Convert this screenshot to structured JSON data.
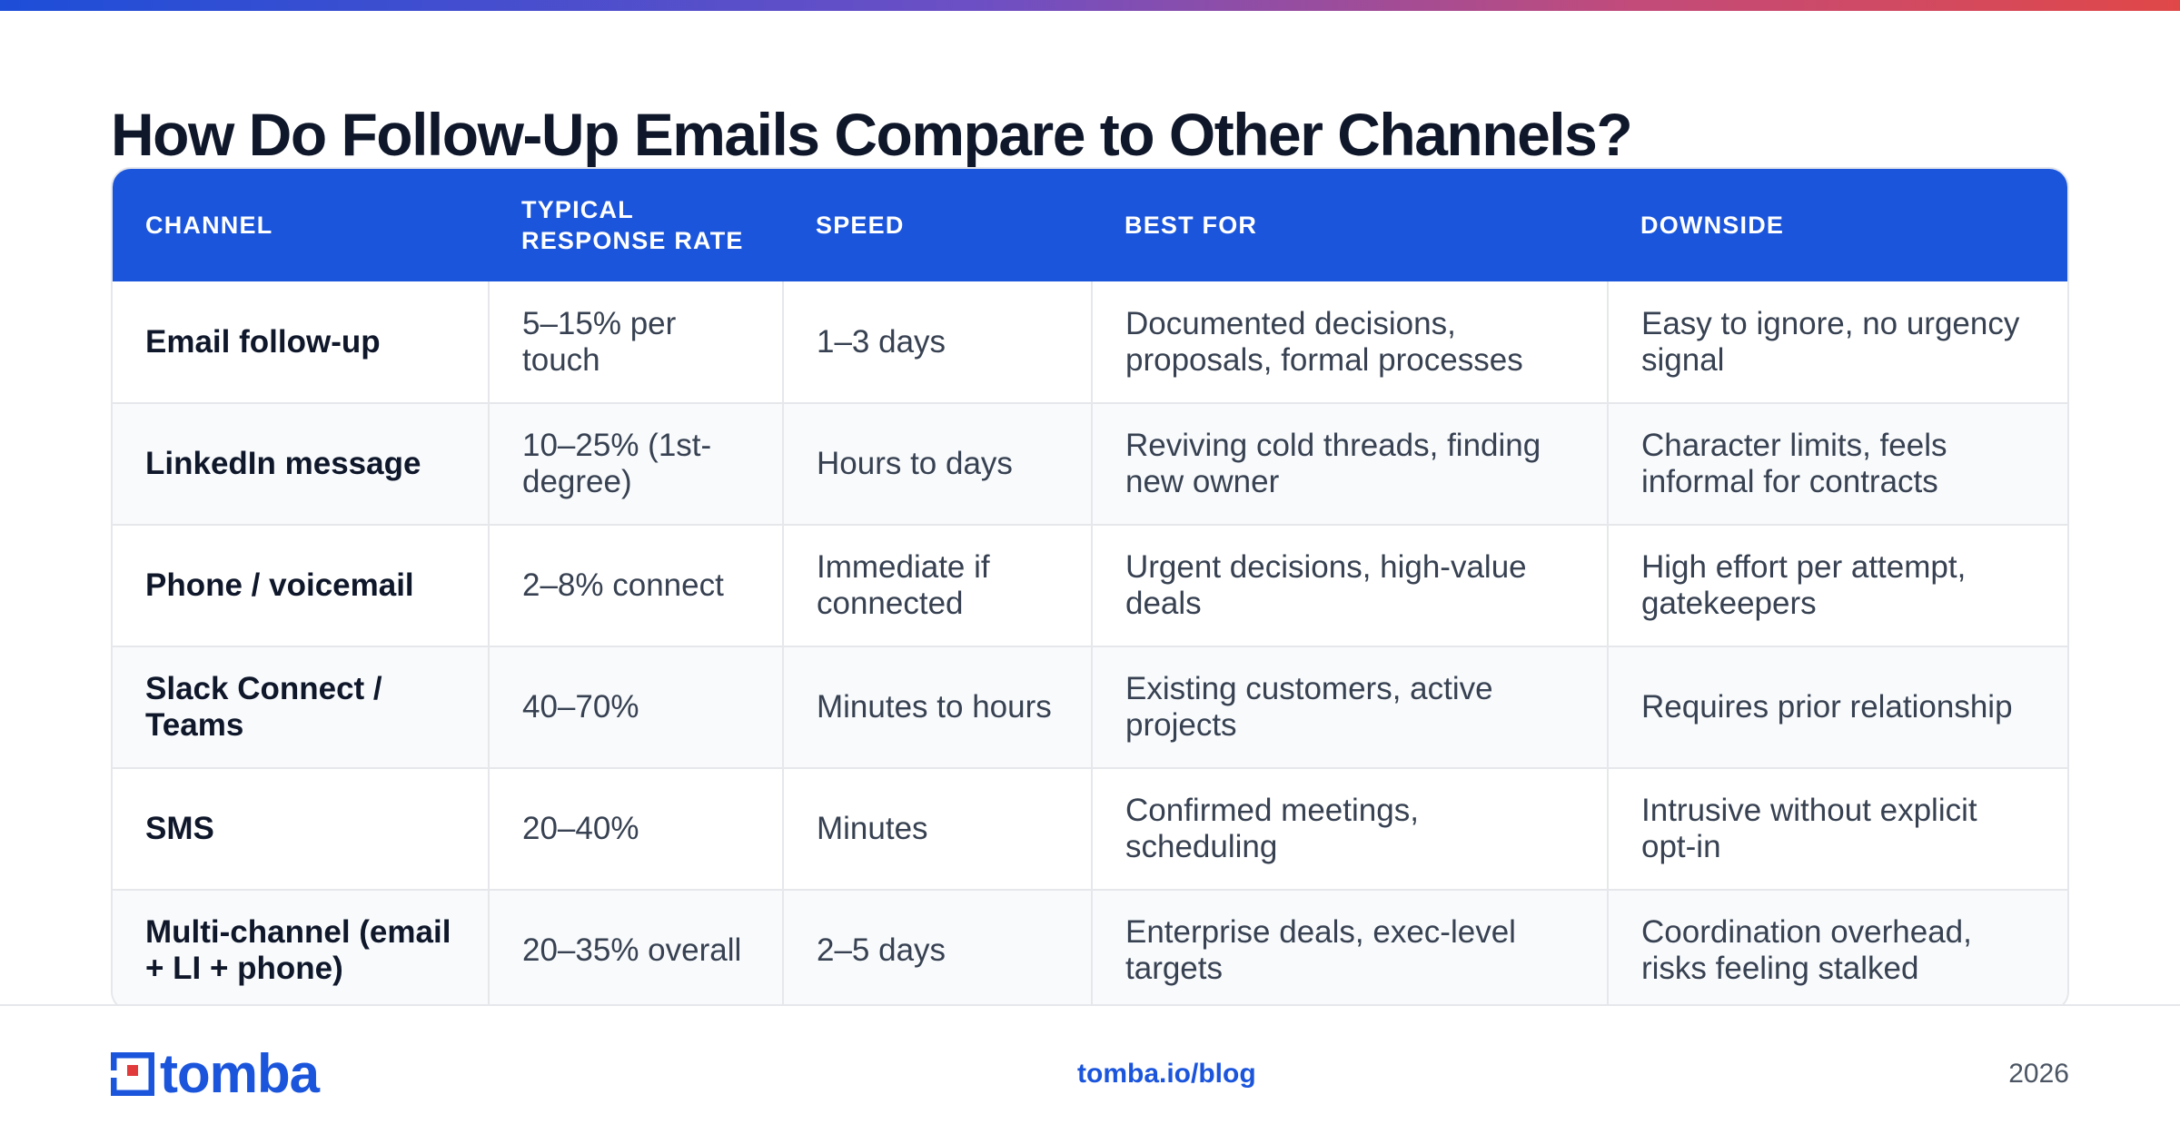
{
  "title": "How Do Follow-Up Emails Compare to Other Channels?",
  "colors": {
    "accent": "#1b55dc",
    "header_text": "#ffffff",
    "logo_red": "#e23b3b"
  },
  "table": {
    "headers": [
      "CHANNEL",
      "TYPICAL RESPONSE RATE",
      "SPEED",
      "BEST FOR",
      "DOWNSIDE"
    ],
    "rows": [
      {
        "channel": "Email follow-up",
        "rate": "5–15% per touch",
        "speed": "1–3 days",
        "best_for": "Documented decisions, proposals, formal processes",
        "downside": "Easy to ignore, no urgency signal"
      },
      {
        "channel": "LinkedIn message",
        "rate": "10–25% (1st-degree)",
        "speed": "Hours to days",
        "best_for": "Reviving cold threads, finding new owner",
        "downside": "Character limits, feels informal for contracts"
      },
      {
        "channel": "Phone / voicemail",
        "rate": "2–8% connect",
        "speed": "Immediate if connected",
        "best_for": "Urgent decisions, high-value deals",
        "downside": "High effort per attempt, gatekeepers"
      },
      {
        "channel": "Slack Connect / Teams",
        "rate": "40–70%",
        "speed": "Minutes to hours",
        "best_for": "Existing customers, active projects",
        "downside": "Requires prior relationship"
      },
      {
        "channel": "SMS",
        "rate": "20–40%",
        "speed": "Minutes",
        "best_for": "Confirmed meetings, scheduling",
        "downside": "Intrusive without explicit opt-in"
      },
      {
        "channel": "Multi-channel (email + LI + phone)",
        "rate": "20–35% overall",
        "speed": "2–5 days",
        "best_for": "Enterprise deals, exec-level targets",
        "downside": "Coordination overhead, risks feeling stalked"
      }
    ]
  },
  "footer": {
    "logo_text": "tomba",
    "logo_icon": "tomba-logo-icon",
    "url": "tomba.io/blog",
    "year": "2026"
  }
}
